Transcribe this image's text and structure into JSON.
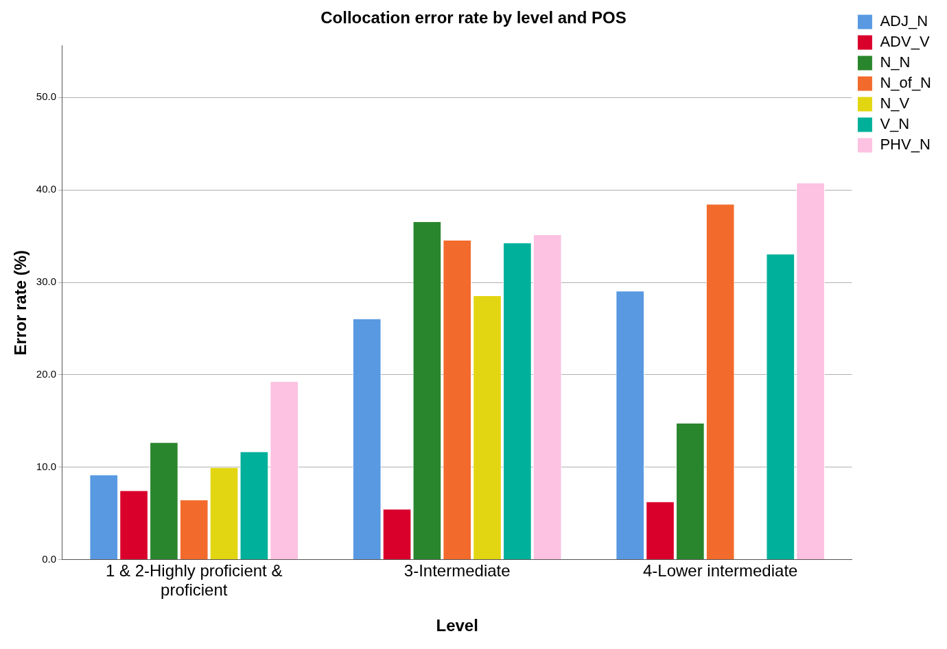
{
  "chart_data": {
    "type": "bar",
    "title": "Collocation error rate by level and POS",
    "xlabel": "Level",
    "ylabel": "Error rate (%)",
    "categories": [
      "1 & 2-Highly proficient & proficient",
      "3-Intermediate",
      "4-Lower intermediate"
    ],
    "series": [
      {
        "name": "ADJ_N",
        "color": "#5899e2",
        "values": [
          9.2,
          26.1,
          29.1
        ]
      },
      {
        "name": "ADV_V",
        "color": "#d9002c",
        "values": [
          7.5,
          5.5,
          6.3
        ]
      },
      {
        "name": "N_N",
        "color": "#2a862c",
        "values": [
          12.7,
          36.6,
          14.8
        ]
      },
      {
        "name": "N_of_N",
        "color": "#f26b2c",
        "values": [
          6.5,
          34.6,
          38.5
        ]
      },
      {
        "name": "N_V",
        "color": "#e2d612",
        "values": [
          10.0,
          28.6,
          null
        ]
      },
      {
        "name": "V_N",
        "color": "#00b09a",
        "values": [
          11.7,
          34.3,
          33.1
        ]
      },
      {
        "name": "PHV_N",
        "color": "#fdc1e1",
        "values": [
          19.3,
          35.2,
          40.8
        ]
      }
    ],
    "ylim": [
      0,
      55.6
    ],
    "yticks": [
      {
        "value": 0,
        "label": "0.0"
      },
      {
        "value": 10,
        "label": "10.0"
      },
      {
        "value": 20,
        "label": "20.0"
      },
      {
        "value": 30,
        "label": "30.0"
      },
      {
        "value": 40,
        "label": "40.0"
      },
      {
        "value": 50,
        "label": "50.0"
      }
    ],
    "grid": "y",
    "legend": "top right"
  }
}
